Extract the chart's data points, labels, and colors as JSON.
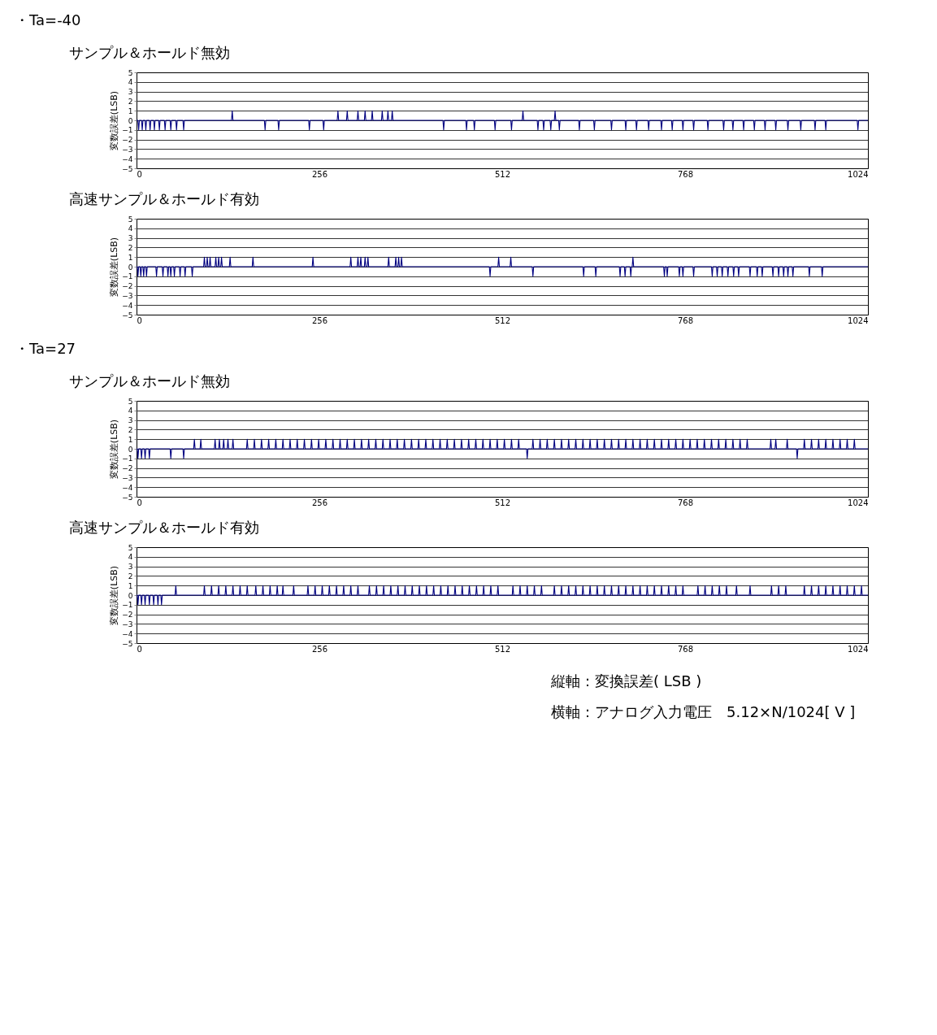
{
  "chart_data": [
    {
      "type": "line",
      "title": "サンプル＆ホールド無効",
      "ylabel": "変数誤差(LSB)",
      "annotations": [
        "・Ta=-40"
      ],
      "xlim": [
        0,
        1024
      ],
      "xticks": [
        0,
        256,
        512,
        768,
        1024
      ],
      "ylim": [
        -5,
        5
      ],
      "yticks": [
        -5,
        -4,
        -3,
        -2,
        -1,
        0,
        1,
        2,
        3,
        4,
        5
      ],
      "grid": "y",
      "line_style": "solid",
      "x": [
        0,
        2,
        3,
        4,
        7,
        8,
        9,
        12,
        13,
        14,
        18,
        19,
        20,
        24,
        25,
        26,
        31,
        32,
        33,
        39,
        40,
        41,
        47,
        48,
        49,
        55,
        56,
        57,
        65,
        66,
        67,
        133,
        134,
        135,
        179,
        180,
        181,
        198,
        199,
        200,
        241,
        242,
        243,
        261,
        262,
        263,
        281,
        282,
        283,
        294,
        295,
        296,
        309,
        310,
        311,
        319,
        320,
        321,
        329,
        330,
        331,
        343,
        344,
        345,
        351,
        352,
        353,
        357,
        358,
        359,
        429,
        430,
        431,
        461,
        462,
        463,
        472,
        473,
        474,
        501,
        502,
        503,
        524,
        525,
        526,
        540,
        541,
        542,
        561,
        562,
        563,
        569,
        570,
        571,
        579,
        580,
        581,
        585,
        586,
        587,
        591,
        592,
        593,
        619,
        620,
        621,
        640,
        641,
        642,
        664,
        665,
        666,
        684,
        685,
        686,
        699,
        700,
        701,
        716,
        717,
        718,
        734,
        735,
        736,
        749,
        750,
        751,
        764,
        765,
        766,
        779,
        780,
        781,
        799,
        800,
        801,
        821,
        822,
        823,
        834,
        835,
        836,
        849,
        850,
        851,
        864,
        865,
        866,
        879,
        880,
        881,
        894,
        895,
        896,
        911,
        912,
        913,
        929,
        930,
        931,
        949,
        950,
        951,
        964,
        965,
        966,
        1009,
        1010,
        1011,
        1024
      ],
      "series": [
        {
          "color": "#000080",
          "values": [
            0,
            0,
            -1,
            0,
            0,
            -1,
            0,
            0,
            -1,
            0,
            0,
            -1,
            0,
            0,
            -1,
            0,
            0,
            -1,
            0,
            0,
            -1,
            0,
            0,
            -1,
            0,
            0,
            -1,
            0,
            0,
            -1,
            0,
            0,
            1,
            0,
            0,
            -1,
            0,
            0,
            -1,
            0,
            0,
            -1,
            0,
            0,
            -1,
            0,
            0,
            1,
            0,
            0,
            1,
            0,
            0,
            1,
            0,
            0,
            1,
            0,
            0,
            1,
            0,
            0,
            1,
            0,
            0,
            1,
            0,
            0,
            1,
            0,
            0,
            -1,
            0,
            0,
            -1,
            0,
            0,
            -1,
            0,
            0,
            -1,
            0,
            0,
            -1,
            0,
            0,
            1,
            0,
            0,
            -1,
            0,
            0,
            -1,
            0,
            0,
            -1,
            0,
            0,
            1,
            0,
            0,
            -1,
            0,
            0,
            -1,
            0,
            0,
            -1,
            0,
            0,
            -1,
            0,
            0,
            -1,
            0,
            0,
            -1,
            0,
            0,
            -1,
            0,
            0,
            -1,
            0,
            0,
            -1,
            0,
            0,
            -1,
            0,
            0,
            -1,
            0,
            0,
            -1,
            0,
            0,
            -1,
            0,
            0,
            -1,
            0,
            0,
            -1,
            0,
            0,
            -1,
            0,
            0,
            -1,
            0,
            0,
            -1,
            0,
            0,
            -1,
            0,
            0,
            -1,
            0,
            0,
            -1,
            0,
            0,
            -1,
            0,
            0,
            -1,
            0,
            0
          ]
        }
      ]
    },
    {
      "type": "line",
      "title": "高速サンプル＆ホールド有効",
      "ylabel": "変数誤差(LSB)",
      "xlim": [
        0,
        1024
      ],
      "xticks": [
        0,
        256,
        512,
        768,
        1024
      ],
      "ylim": [
        -5,
        5
      ],
      "yticks": [
        -5,
        -4,
        -3,
        -2,
        -1,
        0,
        1,
        2,
        3,
        4,
        5
      ],
      "grid": "y",
      "line_style": "solid",
      "x": [
        0,
        1,
        2,
        3,
        5,
        6,
        7,
        9,
        10,
        11,
        13,
        14,
        15,
        27,
        28,
        29,
        36,
        37,
        38,
        43,
        44,
        45,
        47,
        48,
        49,
        52,
        53,
        54,
        60,
        61,
        62,
        67,
        68,
        69,
        77,
        78,
        79,
        94,
        95,
        96,
        98,
        99,
        100,
        102,
        103,
        104,
        110,
        111,
        112,
        114,
        115,
        116,
        118,
        119,
        120,
        130,
        131,
        132,
        162,
        163,
        164,
        246,
        247,
        248,
        299,
        300,
        301,
        309,
        310,
        311,
        313,
        314,
        315,
        319,
        320,
        321,
        323,
        324,
        325,
        352,
        353,
        354,
        362,
        363,
        364,
        366,
        367,
        368,
        370,
        371,
        372,
        494,
        495,
        496,
        506,
        507,
        508,
        523,
        524,
        525,
        554,
        555,
        556,
        625,
        626,
        627,
        642,
        643,
        644,
        676,
        677,
        678,
        683,
        684,
        685,
        691,
        692,
        693,
        694,
        695,
        696,
        738,
        739,
        740,
        742,
        743,
        744,
        759,
        760,
        761,
        764,
        765,
        766,
        779,
        780,
        781,
        805,
        806,
        807,
        812,
        813,
        814,
        819,
        820,
        821,
        827,
        828,
        829,
        835,
        836,
        837,
        842,
        843,
        844,
        858,
        859,
        860,
        868,
        869,
        870,
        875,
        876,
        877,
        890,
        891,
        892,
        898,
        899,
        900,
        905,
        906,
        907,
        911,
        912,
        913,
        918,
        919,
        920,
        941,
        942,
        943,
        959,
        960,
        961,
        1024
      ],
      "series": [
        {
          "color": "#000080",
          "values": [
            0,
            0,
            -1,
            0,
            0,
            -1,
            0,
            0,
            -1,
            0,
            0,
            -1,
            0,
            0,
            -1,
            0,
            0,
            -1,
            0,
            0,
            -1,
            0,
            0,
            -1,
            0,
            0,
            -1,
            0,
            0,
            -1,
            0,
            0,
            -1,
            0,
            0,
            -1,
            0,
            0,
            1,
            0,
            0,
            1,
            0,
            0,
            1,
            0,
            0,
            1,
            0,
            0,
            1,
            0,
            0,
            1,
            0,
            0,
            1,
            0,
            0,
            1,
            0,
            0,
            1,
            0,
            0,
            1,
            0,
            0,
            1,
            0,
            0,
            1,
            0,
            0,
            1,
            0,
            0,
            1,
            0,
            0,
            1,
            0,
            0,
            1,
            0,
            0,
            1,
            0,
            0,
            1,
            0,
            0,
            -1,
            0,
            0,
            1,
            0,
            0,
            1,
            0,
            0,
            -1,
            0,
            0,
            -1,
            0,
            0,
            -1,
            0,
            0,
            -1,
            0,
            0,
            -1,
            0,
            0,
            -1,
            0,
            0,
            1,
            0,
            0,
            -1,
            0,
            0,
            -1,
            0,
            0,
            -1,
            0,
            0,
            -1,
            0,
            0,
            -1,
            0,
            0,
            -1,
            0,
            0,
            -1,
            0,
            0,
            -1,
            0,
            0,
            -1,
            0,
            0,
            -1,
            0,
            0,
            -1,
            0,
            0,
            -1,
            0,
            0,
            -1,
            0,
            0,
            -1,
            0,
            0,
            -1,
            0,
            0,
            -1,
            0,
            0,
            -1,
            0,
            0,
            -1,
            0,
            0,
            -1,
            0,
            0,
            -1,
            0,
            0,
            -1,
            0,
            0
          ]
        }
      ]
    },
    {
      "type": "line",
      "title": "サンプル＆ホールド無効",
      "ylabel": "変数誤差(LSB)",
      "annotations": [
        "・Ta=27"
      ],
      "xlim": [
        0,
        1024
      ],
      "xticks": [
        0,
        256,
        512,
        768,
        1024
      ],
      "ylim": [
        -5,
        5
      ],
      "yticks": [
        -5,
        -4,
        -3,
        -2,
        -1,
        0,
        1,
        2,
        3,
        4,
        5
      ],
      "grid": "y",
      "line_style": "solid",
      "x": [
        0,
        1,
        2,
        3,
        6,
        7,
        8,
        11,
        12,
        13,
        17,
        18,
        19,
        47,
        48,
        49,
        65,
        66,
        67,
        80,
        81,
        82,
        89,
        90,
        91,
        109,
        110,
        111,
        115,
        116,
        117,
        121,
        122,
        123,
        127,
        128,
        129,
        134,
        135,
        136,
        154,
        155,
        156,
        164,
        165,
        166,
        174,
        175,
        176,
        184,
        185,
        186,
        194,
        195,
        196,
        204,
        205,
        206,
        214,
        215,
        216,
        224,
        225,
        226,
        234,
        235,
        236,
        244,
        245,
        246,
        254,
        255,
        256,
        264,
        265,
        266,
        274,
        275,
        276,
        284,
        285,
        286,
        294,
        295,
        296,
        304,
        305,
        306,
        314,
        315,
        316,
        324,
        325,
        326,
        334,
        335,
        336,
        344,
        345,
        346,
        354,
        355,
        356,
        364,
        365,
        366,
        374,
        375,
        376,
        384,
        385,
        386,
        394,
        395,
        396,
        404,
        405,
        406,
        414,
        415,
        416,
        424,
        425,
        426,
        434,
        435,
        436,
        444,
        445,
        446,
        454,
        455,
        456,
        464,
        465,
        466,
        474,
        475,
        476,
        484,
        485,
        486,
        494,
        495,
        496,
        504,
        505,
        506,
        514,
        515,
        516,
        524,
        525,
        526,
        534,
        535,
        536,
        546,
        547,
        548,
        554,
        555,
        556,
        564,
        565,
        566,
        574,
        575,
        576,
        584,
        585,
        586,
        594,
        595,
        596,
        604,
        605,
        606,
        614,
        615,
        616,
        624,
        625,
        626,
        634,
        635,
        636,
        644,
        645,
        646,
        654,
        655,
        656,
        664,
        665,
        666,
        674,
        675,
        676,
        684,
        685,
        686,
        694,
        695,
        696,
        704,
        705,
        706,
        714,
        715,
        716,
        724,
        725,
        726,
        734,
        735,
        736,
        744,
        745,
        746,
        754,
        755,
        756,
        764,
        765,
        766,
        774,
        775,
        776,
        784,
        785,
        786,
        794,
        795,
        796,
        804,
        805,
        806,
        814,
        815,
        816,
        824,
        825,
        826,
        834,
        835,
        836,
        844,
        845,
        846,
        854,
        855,
        856,
        887,
        888,
        889,
        894,
        895,
        896,
        910,
        911,
        912,
        924,
        925,
        926,
        934,
        935,
        936,
        944,
        945,
        946,
        954,
        955,
        956,
        964,
        965,
        966,
        974,
        975,
        976,
        984,
        985,
        986,
        994,
        995,
        996,
        1004,
        1005,
        1006,
        1024
      ],
      "series": [
        {
          "color": "#000080",
          "values": [
            0,
            0,
            -1,
            0,
            0,
            -1,
            0,
            0,
            -1,
            0,
            0,
            -1,
            0,
            0,
            -1,
            0,
            0,
            -1,
            0,
            0,
            1,
            0,
            0,
            1,
            0,
            0,
            1,
            0,
            0,
            1,
            0,
            0,
            1,
            0,
            0,
            1,
            0,
            0,
            1,
            0,
            0,
            1,
            0,
            0,
            1,
            0,
            0,
            1,
            0,
            0,
            1,
            0,
            0,
            1,
            0,
            0,
            1,
            0,
            0,
            1,
            0,
            0,
            1,
            0,
            0,
            1,
            0,
            0,
            1,
            0,
            0,
            1,
            0,
            0,
            1,
            0,
            0,
            1,
            0,
            0,
            1,
            0,
            0,
            1,
            0,
            0,
            1,
            0,
            0,
            1,
            0,
            0,
            1,
            0,
            0,
            1,
            0,
            0,
            1,
            0,
            0,
            1,
            0,
            0,
            1,
            0,
            0,
            1,
            0,
            0,
            1,
            0,
            0,
            1,
            0,
            0,
            1,
            0,
            0,
            1,
            0,
            0,
            1,
            0,
            0,
            1,
            0,
            0,
            1,
            0,
            0,
            1,
            0,
            0,
            1,
            0,
            0,
            1,
            0,
            0,
            1,
            0,
            0,
            1,
            0,
            0,
            1,
            0,
            0,
            1,
            0,
            0,
            1,
            0,
            0,
            1,
            0,
            0,
            -1,
            0,
            0,
            1,
            0,
            0,
            1,
            0,
            0,
            1,
            0,
            0,
            1,
            0,
            0,
            1,
            0,
            0,
            1,
            0,
            0,
            1,
            0,
            0,
            1,
            0,
            0,
            1,
            0,
            0,
            1,
            0,
            0,
            1,
            0,
            0,
            1,
            0,
            0,
            1,
            0,
            0,
            1,
            0,
            0,
            1,
            0,
            0,
            1,
            0,
            0,
            1,
            0,
            0,
            1,
            0,
            0,
            1,
            0,
            0,
            1,
            0,
            0,
            1,
            0,
            0,
            1,
            0,
            0,
            1,
            0,
            0,
            1,
            0,
            0,
            1,
            0,
            0,
            1,
            0,
            0,
            1,
            0,
            0,
            1,
            0,
            0,
            1,
            0,
            0,
            1,
            0,
            0,
            1,
            0,
            0,
            1,
            0,
            0,
            1,
            0,
            0,
            1,
            0,
            0,
            -1,
            0,
            0,
            1,
            0,
            0,
            1,
            0,
            0,
            1,
            0,
            0,
            1,
            0,
            0,
            1,
            0,
            0,
            1,
            0,
            0,
            1,
            0,
            0,
            1,
            0,
            0
          ]
        }
      ]
    },
    {
      "type": "line",
      "title": "高速サンプル＆ホールド有効",
      "ylabel": "変数誤差(LSB)",
      "annotations": [
        "縦軸：変換誤差( LSB )",
        "横軸：アナログ入力電圧　5.12×N/1024[ V ]"
      ],
      "xlim": [
        0,
        1024
      ],
      "xticks": [
        0,
        256,
        512,
        768,
        1024
      ],
      "ylim": [
        -5,
        5
      ],
      "yticks": [
        -5,
        -4,
        -3,
        -2,
        -1,
        0,
        1,
        2,
        3,
        4,
        5
      ],
      "grid": "y",
      "line_style": "solid",
      "x": [
        0,
        1,
        2,
        3,
        6,
        7,
        8,
        11,
        12,
        13,
        17,
        18,
        19,
        23,
        24,
        25,
        29,
        30,
        31,
        34,
        35,
        36,
        54,
        55,
        56,
        94,
        95,
        96,
        104,
        105,
        106,
        114,
        115,
        116,
        124,
        125,
        126,
        134,
        135,
        136,
        144,
        145,
        146,
        154,
        155,
        156,
        166,
        167,
        168,
        176,
        177,
        178,
        186,
        187,
        188,
        196,
        197,
        198,
        204,
        205,
        206,
        219,
        220,
        221,
        239,
        240,
        241,
        249,
        250,
        251,
        259,
        260,
        261,
        269,
        270,
        271,
        279,
        280,
        281,
        289,
        290,
        291,
        299,
        300,
        301,
        309,
        310,
        311,
        325,
        326,
        327,
        335,
        336,
        337,
        345,
        346,
        347,
        355,
        356,
        357,
        365,
        366,
        367,
        375,
        376,
        377,
        385,
        386,
        387,
        395,
        396,
        397,
        405,
        406,
        407,
        415,
        416,
        417,
        425,
        426,
        427,
        435,
        436,
        437,
        445,
        446,
        447,
        455,
        456,
        457,
        465,
        466,
        467,
        475,
        476,
        477,
        485,
        486,
        487,
        495,
        496,
        497,
        505,
        506,
        507,
        526,
        527,
        528,
        536,
        537,
        538,
        546,
        547,
        548,
        556,
        557,
        558,
        566,
        567,
        568,
        584,
        585,
        586,
        594,
        595,
        596,
        604,
        605,
        606,
        614,
        615,
        616,
        624,
        625,
        626,
        634,
        635,
        636,
        644,
        645,
        646,
        654,
        655,
        656,
        664,
        665,
        666,
        674,
        675,
        676,
        684,
        685,
        686,
        694,
        695,
        696,
        704,
        705,
        706,
        714,
        715,
        716,
        724,
        725,
        726,
        734,
        735,
        736,
        744,
        745,
        746,
        754,
        755,
        756,
        764,
        765,
        766,
        785,
        786,
        787,
        795,
        796,
        797,
        805,
        806,
        807,
        815,
        816,
        817,
        825,
        826,
        827,
        839,
        840,
        841,
        858,
        859,
        860,
        888,
        889,
        890,
        898,
        899,
        900,
        908,
        909,
        910,
        934,
        935,
        936,
        944,
        945,
        946,
        954,
        955,
        956,
        964,
        965,
        966,
        974,
        975,
        976,
        984,
        985,
        986,
        994,
        995,
        996,
        1004,
        1005,
        1006,
        1014,
        1015,
        1016,
        1024
      ],
      "series": [
        {
          "color": "#000080",
          "values": [
            0,
            0,
            -1,
            0,
            0,
            -1,
            0,
            0,
            -1,
            0,
            0,
            -1,
            0,
            0,
            -1,
            0,
            0,
            -1,
            0,
            0,
            -1,
            0,
            0,
            1,
            0,
            0,
            1,
            0,
            0,
            1,
            0,
            0,
            1,
            0,
            0,
            1,
            0,
            0,
            1,
            0,
            0,
            1,
            0,
            0,
            1,
            0,
            0,
            1,
            0,
            0,
            1,
            0,
            0,
            1,
            0,
            0,
            1,
            0,
            0,
            1,
            0,
            0,
            1,
            0,
            0,
            1,
            0,
            0,
            1,
            0,
            0,
            1,
            0,
            0,
            1,
            0,
            0,
            1,
            0,
            0,
            1,
            0,
            0,
            1,
            0,
            0,
            1,
            0,
            0,
            1,
            0,
            0,
            1,
            0,
            0,
            1,
            0,
            0,
            1,
            0,
            0,
            1,
            0,
            0,
            1,
            0,
            0,
            1,
            0,
            0,
            1,
            0,
            0,
            1,
            0,
            0,
            1,
            0,
            0,
            1,
            0,
            0,
            1,
            0,
            0,
            1,
            0,
            0,
            1,
            0,
            0,
            1,
            0,
            0,
            1,
            0,
            0,
            1,
            0,
            0,
            1,
            0,
            0,
            1,
            0,
            0,
            1,
            0,
            0,
            1,
            0,
            0,
            1,
            0,
            0,
            1,
            0,
            0,
            1,
            0,
            0,
            1,
            0,
            0,
            1,
            0,
            0,
            1,
            0,
            0,
            1,
            0,
            0,
            1,
            0,
            0,
            1,
            0,
            0,
            1,
            0,
            0,
            1,
            0,
            0,
            1,
            0,
            0,
            1,
            0,
            0,
            1,
            0,
            0,
            1,
            0,
            0,
            1,
            0,
            0,
            1,
            0,
            0,
            1,
            0,
            0,
            1,
            0,
            0,
            1,
            0,
            0,
            1,
            0,
            0,
            1,
            0,
            0,
            1,
            0,
            0,
            1,
            0,
            0,
            1,
            0,
            0,
            1,
            0,
            0,
            1,
            0,
            0,
            1,
            0,
            0,
            1,
            0,
            0,
            1,
            0,
            0,
            1,
            0,
            0,
            1,
            0,
            0,
            1,
            0,
            0,
            1,
            0,
            0,
            1,
            0,
            0,
            1,
            0,
            0,
            1,
            0,
            0,
            1,
            0,
            0,
            1,
            0,
            0,
            1,
            0,
            0,
            1,
            0,
            0
          ]
        }
      ]
    }
  ]
}
